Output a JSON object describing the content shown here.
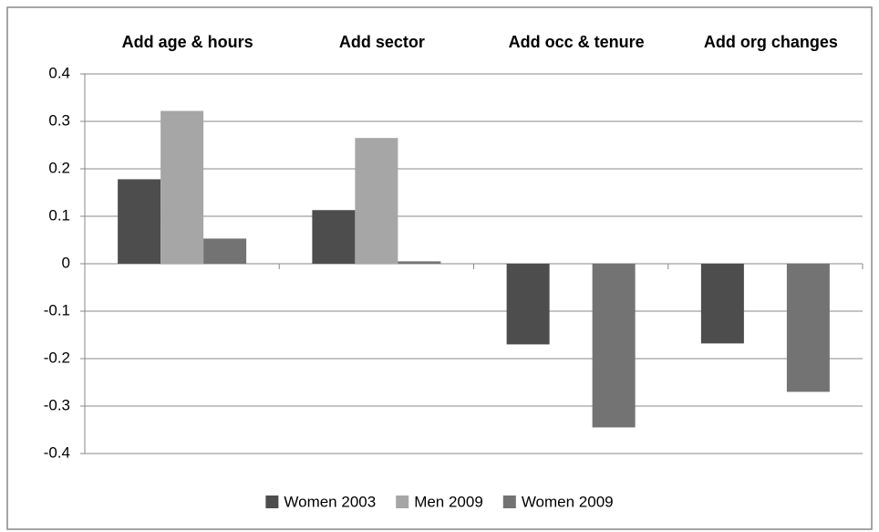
{
  "chart_data": {
    "type": "bar",
    "categories": [
      "Add age & hours",
      "Add sector",
      "Add occ & tenure",
      "Add org changes"
    ],
    "series": [
      {
        "name": "Women 2003",
        "color": "#4d4d4d",
        "values": [
          0.178,
          0.113,
          -0.17,
          -0.168
        ]
      },
      {
        "name": "Men 2009",
        "color": "#a6a6a6",
        "values": [
          0.322,
          0.265,
          null,
          null
        ]
      },
      {
        "name": "Women 2009",
        "color": "#737373",
        "values": [
          0.053,
          0.005,
          -0.345,
          -0.27
        ]
      }
    ],
    "ylim": [
      -0.4,
      0.4
    ],
    "yticks": [
      0.4,
      0.3,
      0.2,
      0.1,
      0,
      -0.1,
      -0.2,
      -0.3,
      -0.4
    ],
    "grid": true,
    "legend": "bottom"
  }
}
